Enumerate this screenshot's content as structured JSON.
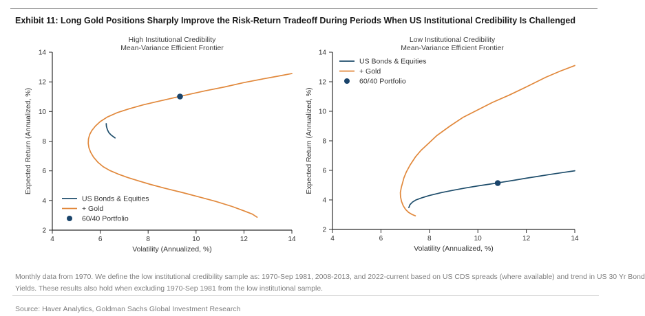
{
  "page": {
    "title": "Exhibit 11: Long Gold Positions Sharply Improve the Risk-Return Tradeoff During Periods When US Institutional Credibility Is Challenged",
    "footnote_line1": "Monthly data from 1970. We define the low institutional credibility sample as: 1970-Sep 1981, 2008-2013, and 2022-current based on US CDS spreads (where available) and trend in US 30 Yr Bond",
    "footnote_line2": "Yields. These results also hold when excluding 1970-Sep 1981 from the low institutional sample.",
    "source": "Source: Haver Analytics, Goldman Sachs Global Investment Research"
  },
  "colors": {
    "navy": "#1E4D6B",
    "orange": "#E1883B",
    "marker": "#1A446B",
    "axis": "#2b2b2b",
    "muted_text": "#7f7f7f"
  },
  "chart_data": [
    {
      "type": "line",
      "title_line1": "High Institutional Credibility",
      "title_line2": "Mean-Variance Efficient Frontier",
      "xlabel": "Volatility (Annualized, %)",
      "ylabel": "Expected Return (Annualized, %)",
      "xlim": [
        4,
        14
      ],
      "ylim": [
        2,
        14
      ],
      "x_tick_labels": [
        "4",
        "6",
        "8",
        "10",
        "12",
        "14"
      ],
      "y_tick_labels": [
        "14",
        "12",
        "10",
        "8",
        "6",
        "4",
        "2"
      ],
      "grid": false,
      "legend_position": "lower left",
      "legend": [
        "US Bonds & Equities",
        "+ Gold",
        "60/40 Portfolio"
      ],
      "series": [
        {
          "name": "US Bonds & Equities",
          "color": "navy",
          "points": [
            [
              6.25,
              9.18
            ],
            [
              6.26,
              9.0
            ],
            [
              6.3,
              8.78
            ],
            [
              6.36,
              8.58
            ],
            [
              6.45,
              8.42
            ],
            [
              6.55,
              8.3
            ],
            [
              6.62,
              8.22
            ]
          ]
        },
        {
          "name": "+ Gold",
          "color": "orange",
          "points": [
            [
              14,
              12.56
            ],
            [
              13.4,
              12.38
            ],
            [
              12.8,
              12.2
            ],
            [
              12.0,
              11.95
            ],
            [
              11.2,
              11.66
            ],
            [
              10.4,
              11.4
            ],
            [
              9.6,
              11.12
            ],
            [
              9.0,
              10.9
            ],
            [
              8.4,
              10.68
            ],
            [
              7.8,
              10.45
            ],
            [
              7.2,
              10.18
            ],
            [
              6.7,
              9.92
            ],
            [
              6.3,
              9.63
            ],
            [
              6.0,
              9.32
            ],
            [
              5.8,
              9.02
            ],
            [
              5.65,
              8.72
            ],
            [
              5.56,
              8.45
            ],
            [
              5.51,
              8.15
            ],
            [
              5.5,
              7.85
            ],
            [
              5.53,
              7.55
            ],
            [
              5.6,
              7.25
            ],
            [
              5.72,
              6.92
            ],
            [
              5.9,
              6.58
            ],
            [
              6.12,
              6.28
            ],
            [
              6.4,
              6.02
            ],
            [
              6.75,
              5.78
            ],
            [
              7.15,
              5.55
            ],
            [
              7.6,
              5.32
            ],
            [
              8.1,
              5.08
            ],
            [
              8.7,
              4.82
            ],
            [
              9.4,
              4.55
            ],
            [
              10.1,
              4.25
            ],
            [
              10.8,
              3.95
            ],
            [
              11.5,
              3.6
            ],
            [
              12.0,
              3.3
            ],
            [
              12.35,
              3.08
            ],
            [
              12.55,
              2.87
            ]
          ]
        }
      ],
      "marker": {
        "label": "60/40 Portfolio",
        "x": 9.33,
        "y": 11.01
      }
    },
    {
      "type": "line",
      "title_line1": "Low Institutional Credibility",
      "title_line2": "Mean-Variance Efficient Frontier",
      "xlabel": "Volatility (Annualized, %)",
      "ylabel": "Expected Return (Annualized, %)",
      "xlim": [
        4,
        14
      ],
      "ylim": [
        2,
        14
      ],
      "x_tick_labels": [
        "4",
        "6",
        "8",
        "10",
        "12",
        "14"
      ],
      "y_tick_labels": [
        "14",
        "12",
        "10",
        "8",
        "6",
        "4",
        "2"
      ],
      "grid": false,
      "legend_position": "upper left",
      "legend": [
        "US Bonds & Equities",
        "+ Gold",
        "60/40 Portfolio"
      ],
      "series": [
        {
          "name": "US Bonds & Equities",
          "color": "navy",
          "points": [
            [
              7.15,
              3.48
            ],
            [
              7.2,
              3.68
            ],
            [
              7.3,
              3.85
            ],
            [
              7.45,
              4.0
            ],
            [
              7.7,
              4.15
            ],
            [
              8.0,
              4.3
            ],
            [
              8.5,
              4.5
            ],
            [
              9.0,
              4.66
            ],
            [
              9.5,
              4.81
            ],
            [
              10.0,
              4.95
            ],
            [
              10.5,
              5.07
            ],
            [
              11.0,
              5.2
            ],
            [
              11.5,
              5.33
            ],
            [
              12.0,
              5.47
            ],
            [
              12.5,
              5.6
            ],
            [
              13.0,
              5.73
            ],
            [
              13.5,
              5.85
            ],
            [
              14.0,
              5.97
            ]
          ]
        },
        {
          "name": "+ Gold",
          "color": "orange",
          "points": [
            [
              7.42,
              2.92
            ],
            [
              7.28,
              3.02
            ],
            [
              7.14,
              3.16
            ],
            [
              7.02,
              3.35
            ],
            [
              6.92,
              3.6
            ],
            [
              6.85,
              3.9
            ],
            [
              6.81,
              4.2
            ],
            [
              6.8,
              4.5
            ],
            [
              6.84,
              4.85
            ],
            [
              6.9,
              5.2
            ],
            [
              6.95,
              5.5
            ],
            [
              7.05,
              5.9
            ],
            [
              7.2,
              6.35
            ],
            [
              7.42,
              6.9
            ],
            [
              7.65,
              7.35
            ],
            [
              7.95,
              7.8
            ],
            [
              8.3,
              8.35
            ],
            [
              8.85,
              9.0
            ],
            [
              9.4,
              9.6
            ],
            [
              10.0,
              10.1
            ],
            [
              10.6,
              10.6
            ],
            [
              11.3,
              11.1
            ],
            [
              12.0,
              11.65
            ],
            [
              12.8,
              12.3
            ],
            [
              13.4,
              12.72
            ],
            [
              14.0,
              13.1
            ]
          ]
        }
      ],
      "marker": {
        "label": "60/40 Portfolio",
        "x": 10.82,
        "y": 5.14
      }
    }
  ]
}
